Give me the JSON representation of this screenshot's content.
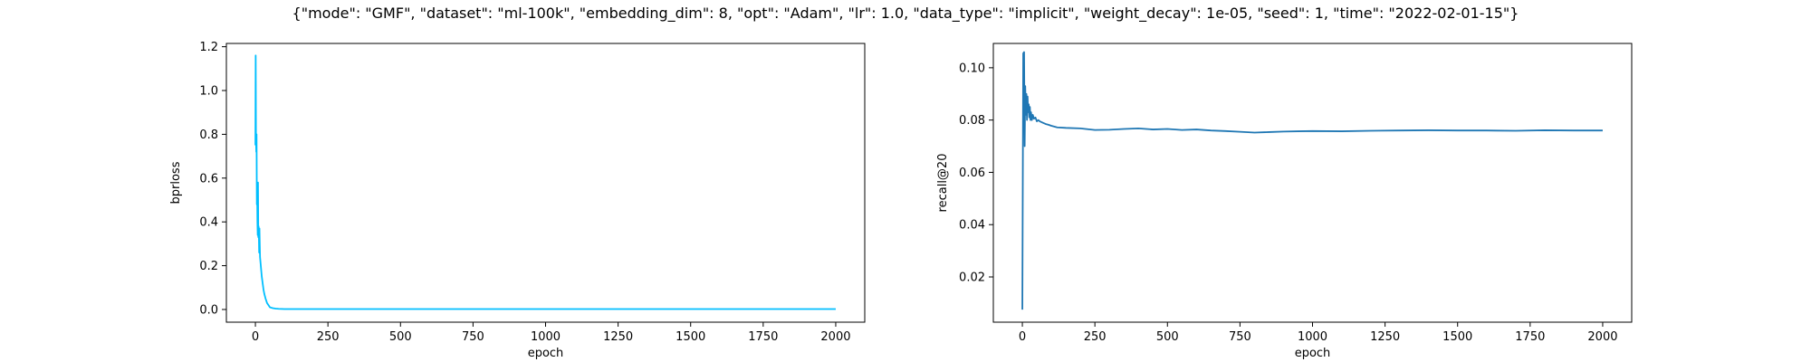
{
  "figure": {
    "title": "{\"mode\": \"GMF\", \"dataset\": \"ml-100k\", \"embedding_dim\": 8, \"opt\": \"Adam\", \"lr\": 1.0, \"data_type\": \"implicit\", \"weight_decay\": 1e-05, \"seed\": 1, \"time\": \"2022-02-01-15\"}"
  },
  "chart_data": [
    {
      "type": "line",
      "xlabel": "epoch",
      "ylabel": "bprloss",
      "xlim": [
        -100,
        2100
      ],
      "ylim": [
        -0.058,
        1.215
      ],
      "xticks": [
        0,
        250,
        500,
        750,
        1000,
        1250,
        1500,
        1750,
        2000
      ],
      "yticks": [
        0.0,
        0.2,
        0.4,
        0.6,
        0.8,
        1.0,
        1.2
      ],
      "ytick_labels": [
        "0.0",
        "0.2",
        "0.4",
        "0.6",
        "0.8",
        "1.0",
        "1.2"
      ],
      "grid": false,
      "color": "#00bfff",
      "series": [
        {
          "x": [
            0,
            1,
            2,
            3,
            4,
            5,
            6,
            7,
            8,
            9,
            10,
            11,
            12,
            13,
            14,
            15,
            16,
            18,
            20,
            22,
            25,
            28,
            31,
            35,
            40,
            45,
            50,
            60,
            70,
            80,
            100,
            150,
            300,
            500,
            1000,
            1500,
            2000
          ],
          "y": [
            0.75,
            1.16,
            0.78,
            0.72,
            0.8,
            0.48,
            0.55,
            0.4,
            0.34,
            0.58,
            0.33,
            0.38,
            0.34,
            0.26,
            0.37,
            0.3,
            0.24,
            0.21,
            0.18,
            0.15,
            0.12,
            0.09,
            0.07,
            0.05,
            0.03,
            0.02,
            0.01,
            0.006,
            0.004,
            0.003,
            0.002,
            0.002,
            0.002,
            0.002,
            0.002,
            0.002,
            0.002
          ]
        }
      ]
    },
    {
      "type": "line",
      "xlabel": "epoch",
      "ylabel": "recall@20",
      "xlim": [
        -100,
        2100
      ],
      "ylim": [
        0.0027,
        0.1093
      ],
      "xticks": [
        0,
        250,
        500,
        750,
        1000,
        1250,
        1500,
        1750,
        2000
      ],
      "yticks": [
        0.02,
        0.04,
        0.06,
        0.08,
        0.1
      ],
      "ytick_labels": [
        "0.02",
        "0.04",
        "0.06",
        "0.08",
        "0.10"
      ],
      "grid": false,
      "color": "#1f77b4",
      "series": [
        {
          "x": [
            0,
            3,
            6,
            8,
            10,
            12,
            14,
            16,
            18,
            20,
            22,
            24,
            26,
            28,
            30,
            33,
            36,
            40,
            45,
            50,
            55,
            60,
            70,
            80,
            90,
            100,
            120,
            150,
            200,
            250,
            300,
            350,
            400,
            450,
            500,
            550,
            600,
            650,
            700,
            750,
            800,
            850,
            900,
            950,
            1000,
            1100,
            1200,
            1300,
            1400,
            1500,
            1600,
            1700,
            1800,
            1900,
            2000
          ],
          "y": [
            0.0075,
            0.1055,
            0.106,
            0.07,
            0.093,
            0.082,
            0.09,
            0.08,
            0.089,
            0.083,
            0.086,
            0.081,
            0.085,
            0.08,
            0.083,
            0.08,
            0.082,
            0.0805,
            0.081,
            0.0795,
            0.08,
            0.0795,
            0.079,
            0.0785,
            0.0782,
            0.0778,
            0.0772,
            0.077,
            0.0768,
            0.0762,
            0.0763,
            0.0766,
            0.0768,
            0.0764,
            0.0766,
            0.0762,
            0.0764,
            0.076,
            0.0758,
            0.0755,
            0.0752,
            0.0754,
            0.0756,
            0.0757,
            0.0758,
            0.0757,
            0.0759,
            0.076,
            0.0761,
            0.076,
            0.076,
            0.0759,
            0.0761,
            0.076,
            0.076
          ]
        }
      ]
    }
  ]
}
